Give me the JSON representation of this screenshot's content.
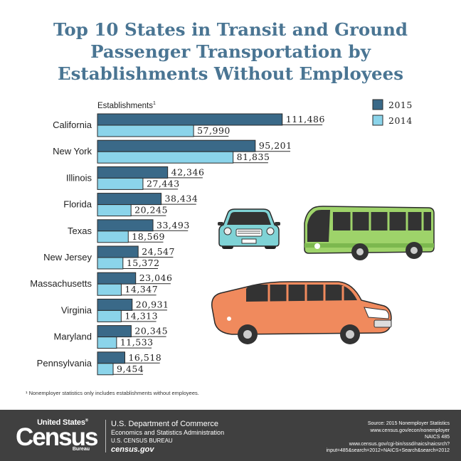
{
  "title_lines": [
    "Top 10 States in Transit and Ground",
    "Passenger Transportation by",
    "Establishments Without Employees"
  ],
  "chart_data": {
    "type": "bar",
    "orientation": "horizontal",
    "axis_label": "Establishments",
    "axis_label_superscript": "1",
    "categories": [
      "California",
      "New York",
      "Illinois",
      "Florida",
      "Texas",
      "New Jersey",
      "Massachusetts",
      "Virginia",
      "Maryland",
      "Pennsylvania"
    ],
    "series": [
      {
        "name": "2015",
        "color": "#3a6988",
        "values": [
          111486,
          95201,
          42346,
          38434,
          33493,
          24547,
          23046,
          20931,
          20345,
          16518
        ]
      },
      {
        "name": "2014",
        "color": "#8bd4ea",
        "values": [
          57990,
          81835,
          27443,
          20245,
          18569,
          15372,
          14347,
          14313,
          11533,
          9454
        ]
      }
    ],
    "value_labels": [
      [
        "111,486",
        "57,990"
      ],
      [
        "95,201",
        "81,835"
      ],
      [
        "42,346",
        "27,443"
      ],
      [
        "38,434",
        "20,245"
      ],
      [
        "33,493",
        "18,569"
      ],
      [
        "24,547",
        "15,372"
      ],
      [
        "23,046",
        "14,347"
      ],
      [
        "20,931",
        "14,313"
      ],
      [
        "20,345",
        "11,533"
      ],
      [
        "16,518",
        "9,454"
      ]
    ],
    "legend_position": "top-right",
    "grid": false
  },
  "illustrations": {
    "car": "teal-car-icon",
    "bus": "green-bus-icon",
    "limo": "orange-limousine-icon"
  },
  "footnote": "¹ Nonemployer statistics only includes establishments without employees.",
  "footer": {
    "logo_top": "United States",
    "logo_reg": "®",
    "logo_main": "Census",
    "logo_bottom": "Bureau",
    "dept1": "U.S. Department of Commerce",
    "dept2": "Economics and Statistics Administration",
    "dept3": "U.S. CENSUS BUREAU",
    "dept4": "census.gov",
    "src1": "Source: 2015 Nonemployer Statistics",
    "src2": "www.census.gov/econ/nonemployer",
    "src3": "NAICS 485",
    "src4": "www.census.gov/cgi-bin/sssd/naics/naicsrch?",
    "src5": "input=485&search=2012+NAICS+Search&search=2012"
  }
}
